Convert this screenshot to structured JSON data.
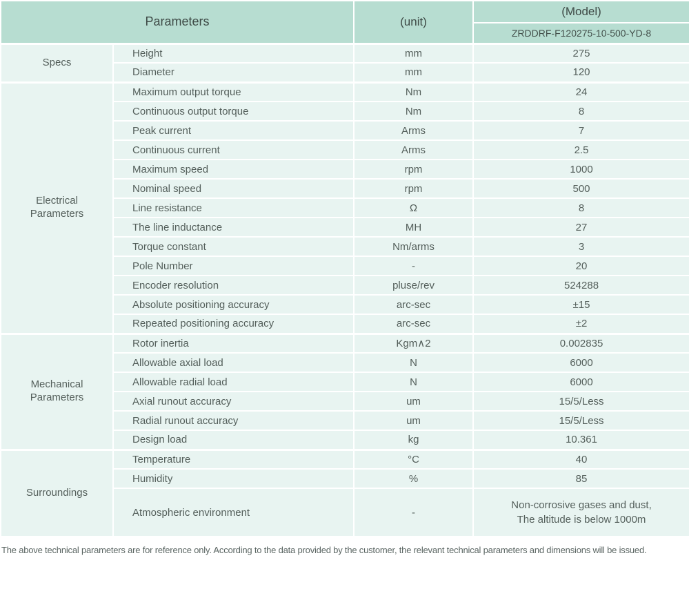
{
  "header": {
    "parameters_label": "Parameters",
    "unit_label": "(unit)",
    "model_label": "(Model)",
    "model_value": "ZRDDRF-F120275-10-500-YD-8"
  },
  "groups": [
    {
      "name": "Specs",
      "rows": [
        {
          "label": "Height",
          "unit": "mm",
          "value": "275"
        },
        {
          "label": "Diameter",
          "unit": "mm",
          "value": "120"
        }
      ]
    },
    {
      "name": "Electrical\nParameters",
      "rows": [
        {
          "label": "Maximum output torque",
          "unit": "Nm",
          "value": "24"
        },
        {
          "label": "Continuous output torque",
          "unit": "Nm",
          "value": "8"
        },
        {
          "label": "Peak current",
          "unit": "Arms",
          "value": "7"
        },
        {
          "label": "Continuous current",
          "unit": "Arms",
          "value": "2.5"
        },
        {
          "label": "Maximum speed",
          "unit": "rpm",
          "value": "1000"
        },
        {
          "label": "Nominal speed",
          "unit": "rpm",
          "value": "500"
        },
        {
          "label": "Line resistance",
          "unit": "Ω",
          "value": "8"
        },
        {
          "label": "The line inductance",
          "unit": "MH",
          "value": "27"
        },
        {
          "label": "Torque constant",
          "unit": "Nm/arms",
          "value": "3"
        },
        {
          "label": "Pole Number",
          "unit": "-",
          "value": "20"
        },
        {
          "label": "Encoder resolution",
          "unit": "pluse/rev",
          "value": "524288"
        },
        {
          "label": "Absolute positioning accuracy",
          "unit": "arc-sec",
          "value": "±15"
        },
        {
          "label": "Repeated positioning accuracy",
          "unit": "arc-sec",
          "value": "±2"
        }
      ]
    },
    {
      "name": "Mechanical\nParameters",
      "rows": [
        {
          "label": "Rotor inertia",
          "unit": "Kgm∧2",
          "value": "0.002835"
        },
        {
          "label": "Allowable axial load",
          "unit": "N",
          "value": "6000"
        },
        {
          "label": "Allowable radial load",
          "unit": "N",
          "value": "6000"
        },
        {
          "label": "Axial runout accuracy",
          "unit": "um",
          "value": "15/5/Less"
        },
        {
          "label": "Radial runout accuracy",
          "unit": "um",
          "value": "15/5/Less"
        },
        {
          "label": "Design load",
          "unit": "kg",
          "value": "10.361"
        }
      ]
    },
    {
      "name": "Surroundings",
      "rows": [
        {
          "label": "Temperature",
          "unit": "°C",
          "value": "40"
        },
        {
          "label": "Humidity",
          "unit": "%",
          "value": "85"
        },
        {
          "label": "Atmospheric environment",
          "unit": "-",
          "value": "Non-corrosive gases and dust,\nThe altitude is below 1000m"
        }
      ]
    }
  ],
  "footer": {
    "note": "The above technical parameters are for reference only. According to the data provided by the customer, the relevant technical parameters and dimensions will be issued."
  },
  "colors": {
    "header_bg": "#b7ddd1",
    "row_bg": "#e8f4f1",
    "separator": "#ffffff",
    "text": "#545f5b"
  }
}
